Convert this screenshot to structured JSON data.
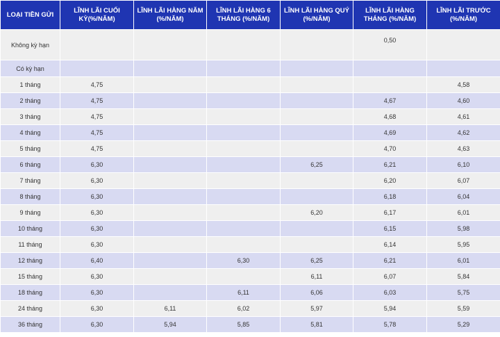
{
  "table": {
    "headers": [
      "LOẠI TIỀN GỬI",
      "LĨNH LÃI CUỐI KỲ(%/NĂM)",
      "LĨNH LÃI HÀNG NĂM (%/NĂM)",
      "LĨNH LÃI HÀNG 6 THÁNG (%/NĂM)",
      "LĨNH LÃI HÀNG QUÝ (%/NĂM)",
      "LĨNH LÃI HÀNG THÁNG (%/NĂM)",
      "LĨNH LÃI TRƯỚC (%/NĂM)"
    ],
    "rows": [
      [
        "Không kỳ hạn",
        "",
        "",
        "",
        "",
        "0,50",
        ""
      ],
      [
        "Có kỳ hạn",
        "",
        "",
        "",
        "",
        "",
        ""
      ],
      [
        "1 tháng",
        "4,75",
        "",
        "",
        "",
        "",
        "4,58"
      ],
      [
        "2 tháng",
        "4,75",
        "",
        "",
        "",
        "4,67",
        "4,60"
      ],
      [
        "3 tháng",
        "4,75",
        "",
        "",
        "",
        "4,68",
        "4,61"
      ],
      [
        "4 tháng",
        "4,75",
        "",
        "",
        "",
        "4,69",
        "4,62"
      ],
      [
        "5 tháng",
        "4,75",
        "",
        "",
        "",
        "4,70",
        "4,63"
      ],
      [
        "6 tháng",
        "6,30",
        "",
        "",
        "6,25",
        "6,21",
        "6,10"
      ],
      [
        "7 tháng",
        "6,30",
        "",
        "",
        "",
        "6,20",
        "6,07"
      ],
      [
        "8 tháng",
        "6,30",
        "",
        "",
        "",
        "6,18",
        "6,04"
      ],
      [
        "9 tháng",
        "6,30",
        "",
        "",
        "6,20",
        "6,17",
        "6,01"
      ],
      [
        "10 tháng",
        "6,30",
        "",
        "",
        "",
        "6,15",
        "5,98"
      ],
      [
        "11 tháng",
        "6,30",
        "",
        "",
        "",
        "6,14",
        "5,95"
      ],
      [
        "12 tháng",
        "6,40",
        "",
        "6,30",
        "6,25",
        "6,21",
        "6,01"
      ],
      [
        "15 tháng",
        "6,30",
        "",
        "",
        "6,11",
        "6,07",
        "5,84"
      ],
      [
        "18 tháng",
        "6,30",
        "",
        "6,11",
        "6,06",
        "6,03",
        "5,75"
      ],
      [
        "24 tháng",
        "6,30",
        "6,11",
        "6,02",
        "5,97",
        "5,94",
        "5,59"
      ],
      [
        "36 tháng",
        "6,30",
        "5,94",
        "5,85",
        "5,81",
        "5,78",
        "5,29"
      ]
    ]
  }
}
